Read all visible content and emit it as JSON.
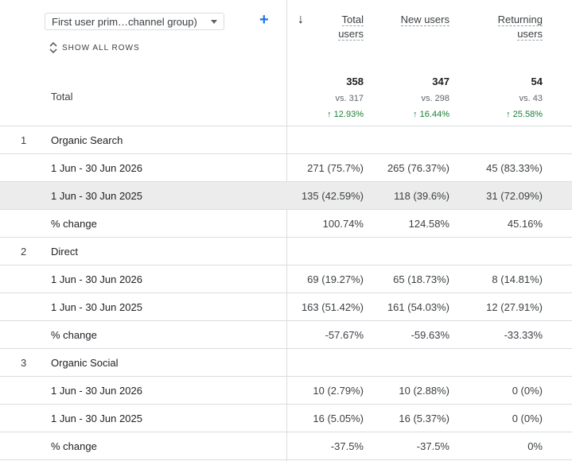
{
  "dimension_select": {
    "label": "First user prim…channel group)"
  },
  "show_all_rows": "SHOW ALL ROWS",
  "columns": [
    {
      "line1": "Total",
      "line2": "users"
    },
    {
      "line1": "New users",
      "line2": ""
    },
    {
      "line1": "Returning",
      "line2": "users"
    }
  ],
  "totals": {
    "label": "Total",
    "values": [
      {
        "value": "358",
        "vs": "vs. 317",
        "change": "↑ 12.93%"
      },
      {
        "value": "347",
        "vs": "vs. 298",
        "change": "↑ 16.44%"
      },
      {
        "value": "54",
        "vs": "vs. 43",
        "change": "↑ 25.58%"
      }
    ]
  },
  "rows": [
    {
      "type": "group",
      "num": "1",
      "label": "Organic Search",
      "cells": [
        "",
        "",
        ""
      ]
    },
    {
      "type": "sub",
      "num": "",
      "label": "1 Jun - 30 Jun 2026",
      "cells": [
        "271 (75.7%)",
        "265 (76.37%)",
        "45 (83.33%)"
      ]
    },
    {
      "type": "sub-hl",
      "num": "",
      "label": "1 Jun - 30 Jun 2025",
      "cells": [
        "135 (42.59%)",
        "118 (39.6%)",
        "31 (72.09%)"
      ]
    },
    {
      "type": "sub",
      "num": "",
      "label": "% change",
      "cells": [
        "100.74%",
        "124.58%",
        "45.16%"
      ]
    },
    {
      "type": "group",
      "num": "2",
      "label": "Direct",
      "cells": [
        "",
        "",
        ""
      ]
    },
    {
      "type": "sub",
      "num": "",
      "label": "1 Jun - 30 Jun 2026",
      "cells": [
        "69 (19.27%)",
        "65 (18.73%)",
        "8 (14.81%)"
      ]
    },
    {
      "type": "sub",
      "num": "",
      "label": "1 Jun - 30 Jun 2025",
      "cells": [
        "163 (51.42%)",
        "161 (54.03%)",
        "12 (27.91%)"
      ]
    },
    {
      "type": "sub",
      "num": "",
      "label": "% change",
      "cells": [
        "-57.67%",
        "-59.63%",
        "-33.33%"
      ]
    },
    {
      "type": "group",
      "num": "3",
      "label": "Organic Social",
      "cells": [
        "",
        "",
        ""
      ]
    },
    {
      "type": "sub",
      "num": "",
      "label": "1 Jun - 30 Jun 2026",
      "cells": [
        "10 (2.79%)",
        "10 (2.88%)",
        "0 (0%)"
      ]
    },
    {
      "type": "sub",
      "num": "",
      "label": "1 Jun - 30 Jun 2025",
      "cells": [
        "16 (5.05%)",
        "16 (5.37%)",
        "0 (0%)"
      ]
    },
    {
      "type": "sub",
      "num": "",
      "label": "% change",
      "cells": [
        "-37.5%",
        "-37.5%",
        "0%"
      ]
    }
  ]
}
